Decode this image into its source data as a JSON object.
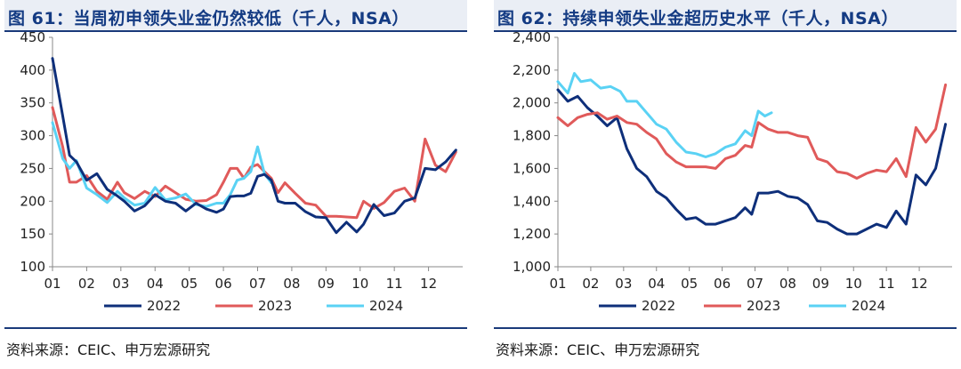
{
  "charts": [
    {
      "id": "left",
      "title": "图 61：当周初申领失业金仍然较低（千人，NSA）",
      "source": "资料来源：CEIC、申万宏源研究",
      "chart_data": {
        "type": "line",
        "xlabel": "",
        "ylabel": "",
        "ylim": [
          100,
          450
        ],
        "yticks": [
          100,
          150,
          200,
          250,
          300,
          350,
          400,
          450
        ],
        "ytick_labels": [
          "100",
          "150",
          "200",
          "250",
          "300",
          "350",
          "400",
          "450"
        ],
        "xlim": [
          1,
          13
        ],
        "xticks": [
          1,
          2,
          3,
          4,
          5,
          6,
          7,
          8,
          9,
          10,
          11,
          12
        ],
        "xtick_labels": [
          "01",
          "02",
          "03",
          "04",
          "05",
          "06",
          "07",
          "08",
          "09",
          "10",
          "11",
          "12"
        ],
        "series": [
          {
            "name": "2023",
            "color": "#e05a5a",
            "x": [
              1.0,
              1.3,
              1.5,
              1.7,
              2.0,
              2.3,
              2.6,
              2.9,
              3.1,
              3.4,
              3.7,
              4.0,
              4.3,
              4.6,
              4.9,
              5.2,
              5.5,
              5.8,
              6.0,
              6.2,
              6.4,
              6.6,
              6.8,
              7.0,
              7.2,
              7.4,
              7.6,
              7.8,
              8.1,
              8.4,
              8.7,
              9.0,
              9.3,
              9.6,
              9.9,
              10.1,
              10.4,
              10.7,
              11.0,
              11.3,
              11.6,
              11.9,
              12.2,
              12.5,
              12.8
            ],
            "values": [
              343,
              283,
              229,
              229,
              239,
              215,
              203,
              229,
              213,
              204,
              215,
              207,
              223,
              213,
              203,
              200,
              201,
              210,
              229,
              250,
              250,
              235,
              252,
              256,
              245,
              235,
              213,
              228,
              212,
              197,
              194,
              177,
              177,
              176,
              175,
              200,
              189,
              198,
              215,
              220,
              200,
              295,
              255,
              245,
              275
            ]
          },
          {
            "name": "2024",
            "color": "#5ad2f4",
            "x": [
              1.0,
              1.3,
              1.5,
              1.7,
              2.0,
              2.3,
              2.6,
              2.9,
              3.1,
              3.4,
              3.7,
              4.0,
              4.3,
              4.6,
              4.9,
              5.2,
              5.5,
              5.8,
              6.0,
              6.2,
              6.4,
              6.6,
              6.8,
              7.0,
              7.2,
              7.4
            ],
            "values": [
              320,
              265,
              250,
              262,
              220,
              210,
              198,
              215,
              205,
              194,
              197,
              221,
              202,
              205,
              211,
              195,
              192,
              197,
              197,
              210,
              232,
              235,
              245,
              283,
              242,
              228
            ]
          },
          {
            "name": "2022",
            "color": "#0e2f7a",
            "x": [
              1.0,
              1.3,
              1.5,
              1.7,
              2.0,
              2.3,
              2.6,
              2.9,
              3.1,
              3.4,
              3.7,
              4.0,
              4.3,
              4.6,
              4.9,
              5.2,
              5.5,
              5.8,
              6.0,
              6.2,
              6.4,
              6.6,
              6.8,
              7.0,
              7.2,
              7.4,
              7.6,
              7.8,
              8.1,
              8.4,
              8.7,
              9.0,
              9.3,
              9.6,
              9.9,
              10.1,
              10.4,
              10.7,
              11.0,
              11.3,
              11.6,
              11.9,
              12.2,
              12.5,
              12.8
            ],
            "values": [
              418,
              330,
              270,
              260,
              232,
              242,
              218,
              208,
              200,
              185,
              193,
              210,
              200,
              197,
              185,
              197,
              188,
              183,
              188,
              207,
              208,
              208,
              212,
              238,
              241,
              232,
              200,
              197,
              197,
              184,
              176,
              175,
              152,
              168,
              153,
              165,
              195,
              178,
              182,
              200,
              205,
              250,
              248,
              260,
              278
            ]
          }
        ],
        "legend": [
          "2022",
          "2023",
          "2024"
        ],
        "legend_position": "bottom"
      }
    },
    {
      "id": "right",
      "title": "图 62：持续申领失业金超历史水平（千人，NSA）",
      "source": "资料来源：CEIC、申万宏源研究",
      "chart_data": {
        "type": "line",
        "xlabel": "",
        "ylabel": "",
        "ylim": [
          1000,
          2400
        ],
        "yticks": [
          1000,
          1200,
          1400,
          1600,
          1800,
          2000,
          2200,
          2400
        ],
        "ytick_labels": [
          "1,000",
          "1,200",
          "1,400",
          "1,600",
          "1,800",
          "2,000",
          "2,200",
          "2,400"
        ],
        "xlim": [
          1,
          13
        ],
        "xticks": [
          1,
          2,
          3,
          4,
          5,
          6,
          7,
          8,
          9,
          10,
          11,
          12
        ],
        "xtick_labels": [
          "01",
          "02",
          "03",
          "04",
          "05",
          "06",
          "07",
          "08",
          "09",
          "10",
          "11",
          "12"
        ],
        "series": [
          {
            "name": "2022",
            "color": "#0e2f7a",
            "x": [
              1.0,
              1.3,
              1.6,
              1.9,
              2.2,
              2.5,
              2.8,
              3.1,
              3.4,
              3.7,
              4.0,
              4.3,
              4.6,
              4.9,
              5.2,
              5.5,
              5.8,
              6.1,
              6.4,
              6.7,
              6.9,
              7.1,
              7.4,
              7.7,
              8.0,
              8.3,
              8.6,
              8.9,
              9.2,
              9.5,
              9.8,
              10.1,
              10.4,
              10.7,
              11.0,
              11.3,
              11.6,
              11.9,
              12.2,
              12.5,
              12.8
            ],
            "values": [
              2080,
              2010,
              2040,
              1970,
              1920,
              1860,
              1910,
              1720,
              1600,
              1550,
              1460,
              1420,
              1350,
              1290,
              1300,
              1260,
              1260,
              1280,
              1300,
              1360,
              1320,
              1450,
              1450,
              1460,
              1430,
              1420,
              1380,
              1280,
              1270,
              1230,
              1200,
              1200,
              1230,
              1260,
              1240,
              1340,
              1260,
              1560,
              1500,
              1600,
              1870
            ]
          },
          {
            "name": "2023",
            "color": "#e05a5a",
            "x": [
              1.0,
              1.3,
              1.6,
              1.9,
              2.2,
              2.5,
              2.8,
              3.1,
              3.4,
              3.7,
              4.0,
              4.3,
              4.6,
              4.9,
              5.2,
              5.5,
              5.8,
              6.1,
              6.4,
              6.7,
              6.9,
              7.1,
              7.4,
              7.7,
              8.0,
              8.3,
              8.6,
              8.9,
              9.2,
              9.5,
              9.8,
              10.1,
              10.4,
              10.7,
              11.0,
              11.3,
              11.6,
              11.9,
              12.2,
              12.5,
              12.8
            ],
            "values": [
              1910,
              1860,
              1910,
              1930,
              1940,
              1900,
              1920,
              1880,
              1870,
              1820,
              1780,
              1690,
              1640,
              1610,
              1610,
              1610,
              1600,
              1660,
              1680,
              1740,
              1730,
              1880,
              1840,
              1820,
              1820,
              1800,
              1790,
              1660,
              1640,
              1580,
              1570,
              1540,
              1570,
              1590,
              1580,
              1660,
              1550,
              1850,
              1760,
              1840,
              2110
            ]
          },
          {
            "name": "2024",
            "color": "#5ad2f4",
            "x": [
              1.0,
              1.3,
              1.5,
              1.7,
              2.0,
              2.3,
              2.6,
              2.9,
              3.1,
              3.4,
              3.7,
              4.0,
              4.3,
              4.6,
              4.9,
              5.2,
              5.5,
              5.8,
              6.1,
              6.4,
              6.7,
              6.9,
              7.1,
              7.3,
              7.5
            ],
            "values": [
              2130,
              2060,
              2180,
              2130,
              2140,
              2090,
              2100,
              2070,
              2010,
              2010,
              1940,
              1870,
              1840,
              1760,
              1700,
              1690,
              1670,
              1690,
              1730,
              1750,
              1830,
              1800,
              1950,
              1920,
              1940
            ]
          }
        ],
        "legend": [
          "2022",
          "2023",
          "2024"
        ],
        "legend_position": "bottom"
      }
    }
  ]
}
